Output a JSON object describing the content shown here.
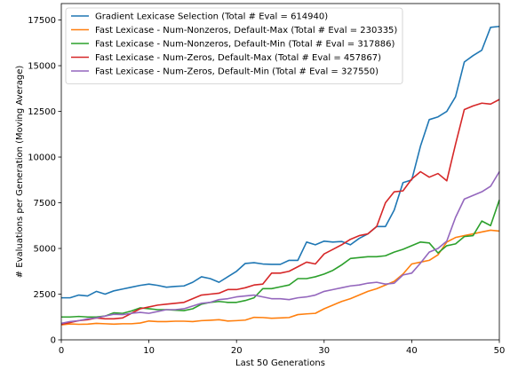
{
  "chart_data": {
    "type": "line",
    "xlabel": "Last 50 Generations",
    "ylabel": "# Evaluations per Generation (Moving Average)",
    "xlim": [
      0,
      50
    ],
    "ylim": [
      0,
      18400
    ],
    "xticks": [
      0,
      10,
      20,
      30,
      40,
      50
    ],
    "yticks": [
      0,
      2500,
      5000,
      7500,
      10000,
      12500,
      15000,
      17500
    ],
    "grid": false,
    "legend_position": "top-left",
    "x": [
      0,
      1,
      2,
      3,
      4,
      5,
      6,
      7,
      8,
      9,
      10,
      11,
      12,
      13,
      14,
      15,
      16,
      17,
      18,
      19,
      20,
      21,
      22,
      23,
      24,
      25,
      26,
      27,
      28,
      29,
      30,
      31,
      32,
      33,
      34,
      35,
      36,
      37,
      38,
      39,
      40,
      41,
      42,
      43,
      44,
      45,
      46,
      47,
      48,
      49,
      50
    ],
    "series": [
      {
        "name": "Gradient Lexicase Selection (Total # Eval = 614940)",
        "color": "#1f77b4",
        "values": [
          2300,
          2300,
          2450,
          2400,
          2650,
          2500,
          2680,
          2780,
          2880,
          2980,
          3050,
          2980,
          2880,
          2920,
          2950,
          3150,
          3450,
          3350,
          3150,
          3450,
          3750,
          4180,
          4220,
          4150,
          4130,
          4130,
          4350,
          4350,
          5350,
          5200,
          5400,
          5350,
          5380,
          5200,
          5550,
          5800,
          6200,
          6200,
          7100,
          8600,
          8750,
          10600,
          12050,
          12200,
          12500,
          13300,
          15200,
          15550,
          15850,
          17100,
          17150
        ]
      },
      {
        "name": "Fast Lexicase - Num-Nonzeros, Default-Max (Total # Eval = 230335)",
        "color": "#ff7f0e",
        "values": [
          820,
          870,
          850,
          860,
          900,
          880,
          860,
          880,
          880,
          920,
          1030,
          1000,
          1000,
          1020,
          1020,
          1000,
          1050,
          1070,
          1100,
          1030,
          1050,
          1080,
          1230,
          1220,
          1180,
          1200,
          1220,
          1380,
          1420,
          1450,
          1700,
          1900,
          2100,
          2250,
          2450,
          2650,
          2800,
          3000,
          3200,
          3600,
          4150,
          4250,
          4350,
          4650,
          5350,
          5600,
          5700,
          5800,
          5900,
          6000,
          5950
        ]
      },
      {
        "name": "Fast Lexicase - Num-Nonzeros, Default-Min (Total # Eval = 317886)",
        "color": "#2ca02c",
        "values": [
          1250,
          1250,
          1280,
          1250,
          1250,
          1300,
          1480,
          1450,
          1580,
          1750,
          1700,
          1650,
          1650,
          1620,
          1600,
          1700,
          1950,
          2050,
          2100,
          2050,
          2050,
          2150,
          2300,
          2800,
          2800,
          2900,
          3000,
          3350,
          3350,
          3450,
          3600,
          3800,
          4100,
          4450,
          4500,
          4550,
          4550,
          4600,
          4800,
          4950,
          5150,
          5350,
          5300,
          4750,
          5150,
          5250,
          5650,
          5700,
          6500,
          6250,
          7650
        ]
      },
      {
        "name": "Fast Lexicase - Num-Zeros, Default-Max (Total # Eval = 457867)",
        "color": "#d62728",
        "values": [
          850,
          950,
          1050,
          1100,
          1200,
          1150,
          1150,
          1200,
          1450,
          1700,
          1800,
          1900,
          1950,
          2000,
          2050,
          2250,
          2450,
          2500,
          2550,
          2750,
          2750,
          2850,
          3000,
          3050,
          3650,
          3650,
          3750,
          4000,
          4250,
          4150,
          4700,
          4950,
          5200,
          5500,
          5700,
          5800,
          6200,
          7500,
          8100,
          8150,
          8800,
          9200,
          8900,
          9100,
          8700,
          10700,
          12600,
          12800,
          12950,
          12900,
          13150
        ]
      },
      {
        "name": "Fast Lexicase - Num-Zeros, Default-Min (Total # Eval = 327550)",
        "color": "#9467bd",
        "values": [
          900,
          1000,
          1050,
          1150,
          1200,
          1300,
          1400,
          1380,
          1450,
          1500,
          1450,
          1550,
          1650,
          1650,
          1700,
          1850,
          2000,
          2050,
          2200,
          2250,
          2350,
          2400,
          2450,
          2350,
          2250,
          2250,
          2200,
          2300,
          2350,
          2450,
          2650,
          2750,
          2850,
          2950,
          3000,
          3100,
          3150,
          3050,
          3100,
          3550,
          3650,
          4200,
          4800,
          5000,
          5400,
          6700,
          7700,
          7900,
          8100,
          8400,
          9200
        ]
      }
    ]
  }
}
